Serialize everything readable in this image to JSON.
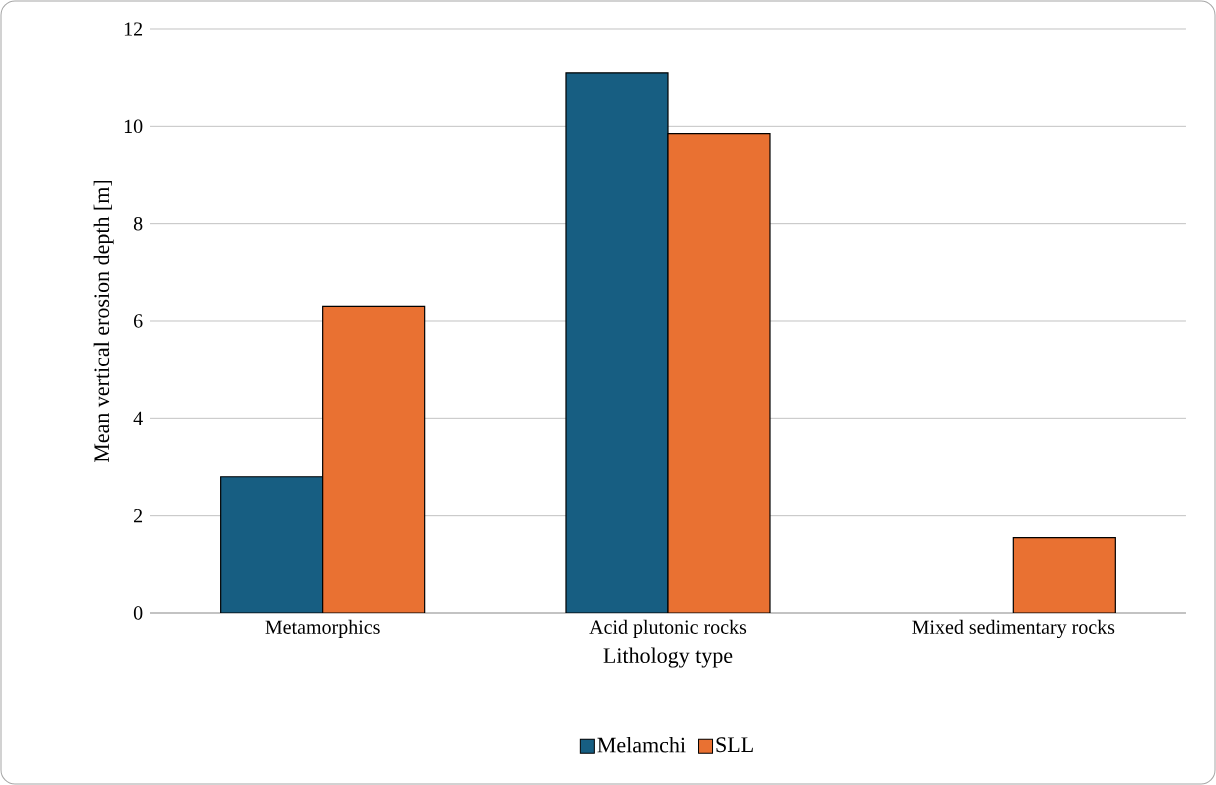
{
  "chart_data": {
    "type": "bar",
    "xlabel": "Lithology type",
    "ylabel": "Mean vertical erosion depth [m]",
    "categories": [
      "Metamorphics",
      "Acid plutonic rocks",
      "Mixed sedimentary rocks"
    ],
    "series": [
      {
        "name": "Melamchi",
        "color": "#175e82",
        "values": [
          2.8,
          11.1,
          null
        ]
      },
      {
        "name": "SLL",
        "color": "#e97132",
        "values": [
          6.3,
          9.85,
          1.55
        ]
      }
    ],
    "ylim": [
      0,
      12
    ],
    "yticks": [
      0,
      2,
      4,
      6,
      8,
      10,
      12
    ],
    "grid": "y",
    "legend": "bottom"
  }
}
